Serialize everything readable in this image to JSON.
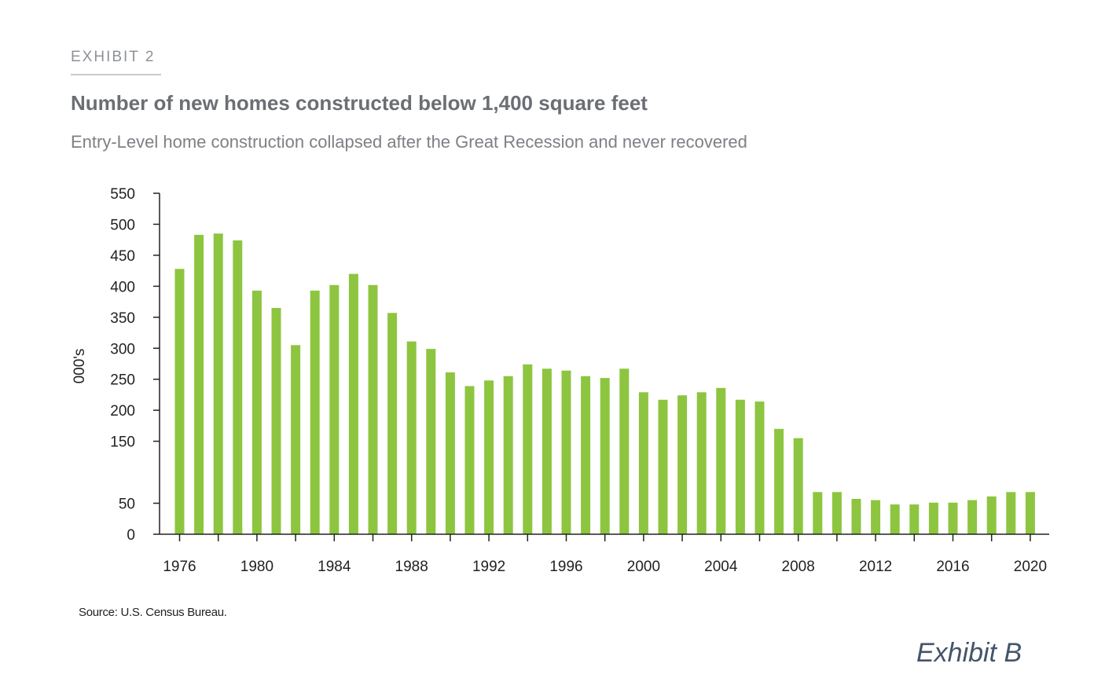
{
  "exhibit_label": "EXHIBIT 2",
  "footer_label": "Exhibit B",
  "source": "Source: U.S. Census Bureau.",
  "colors": {
    "bar": "#8dc540",
    "axis": "#222222",
    "title": "#6b6e73"
  },
  "chart_data": {
    "type": "bar",
    "title": "Number of new homes constructed below 1,400 square feet",
    "subtitle": "Entry-Level home construction collapsed after the Great Recession and never recovered",
    "xlabel": "",
    "ylabel": "000's",
    "ylim": [
      0,
      550
    ],
    "yticks": [
      0,
      50,
      150,
      200,
      250,
      300,
      350,
      400,
      450,
      500,
      550
    ],
    "xtick_labels": [
      "1976",
      "1980",
      "1984",
      "1988",
      "1992",
      "1996",
      "2000",
      "2004",
      "2008",
      "2012",
      "2016",
      "2020"
    ],
    "grid": false,
    "legend": "none",
    "categories": [
      "1976",
      "1977",
      "1978",
      "1979",
      "1980",
      "1981",
      "1982",
      "1983",
      "1984",
      "1985",
      "1986",
      "1987",
      "1988",
      "1989",
      "1990",
      "1991",
      "1992",
      "1993",
      "1994",
      "1995",
      "1996",
      "1997",
      "1998",
      "1999",
      "2000",
      "2001",
      "2002",
      "2003",
      "2004",
      "2005",
      "2006",
      "2007",
      "2008",
      "2009",
      "2010",
      "2011",
      "2012",
      "2013",
      "2014",
      "2015",
      "2016",
      "2017",
      "2018",
      "2019",
      "2020"
    ],
    "values": [
      428,
      483,
      485,
      474,
      393,
      365,
      305,
      393,
      402,
      420,
      402,
      357,
      311,
      299,
      261,
      239,
      248,
      255,
      274,
      267,
      264,
      255,
      252,
      267,
      229,
      217,
      224,
      229,
      236,
      217,
      214,
      170,
      155,
      68,
      68,
      57,
      55,
      48,
      48,
      51,
      51,
      55,
      61,
      68,
      68
    ]
  }
}
